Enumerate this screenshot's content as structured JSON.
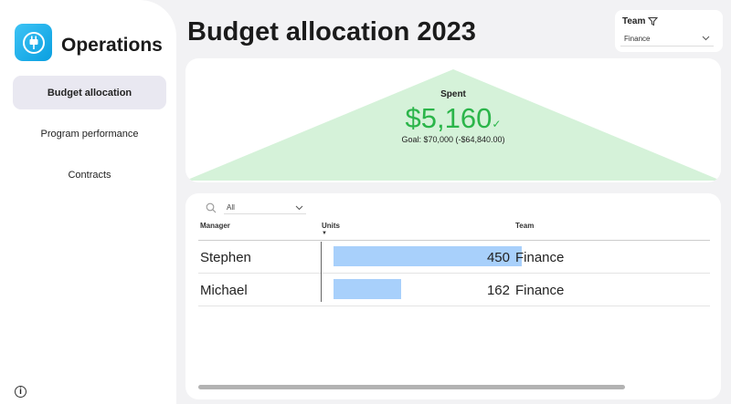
{
  "sidebar": {
    "app_title": "Operations",
    "items": [
      {
        "label": "Budget allocation",
        "active": true
      },
      {
        "label": "Program performance",
        "active": false
      },
      {
        "label": "Contracts",
        "active": false
      }
    ],
    "info_glyph": "i"
  },
  "header": {
    "title": "Budget allocation 2023"
  },
  "team_filter": {
    "label": "Team",
    "selected": "Finance"
  },
  "kpi": {
    "label": "Spent",
    "value": "$5,160",
    "check": "✓",
    "goal_text": "Goal: $70,000 (-$64,840.00)"
  },
  "table": {
    "search_filter_value": "All",
    "columns": [
      "Manager",
      "Units",
      "Team"
    ],
    "sort_indicator": "▼",
    "rows": [
      {
        "manager": "Stephen",
        "units": "450",
        "units_value": 450,
        "team": "Finance"
      },
      {
        "manager": "Michael",
        "units": "162",
        "units_value": 162,
        "team": "Finance"
      }
    ],
    "units_max": 450
  },
  "colors": {
    "accent_blue": "#0a9fe0",
    "kpi_green": "#2bb54a",
    "kpi_background_green": "#d5f2d9",
    "bar_blue": "#a8d0fb",
    "nav_active": "#e9e8f1"
  },
  "icons": {
    "logo": "plug-icon",
    "filter": "filter-funnel-icon",
    "dropdown": "chevron-down-icon",
    "search": "search-icon",
    "info": "info-icon"
  }
}
